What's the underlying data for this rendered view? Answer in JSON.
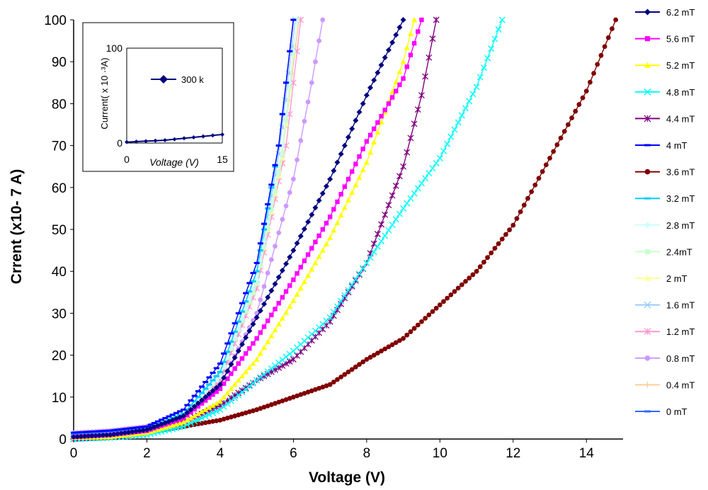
{
  "chart_data": {
    "type": "line",
    "title": "",
    "xlabel": "Voltage (V)",
    "ylabel": "Crrent (x10- 7 A)",
    "xlim": [
      0,
      15
    ],
    "ylim": [
      0,
      100
    ],
    "xticks": [
      "0",
      "2",
      "4",
      "6",
      "8",
      "10",
      "12",
      "14"
    ],
    "yticks": [
      "0",
      "10",
      "20",
      "30",
      "40",
      "50",
      "60",
      "70",
      "80",
      "90",
      "100"
    ],
    "grid": false,
    "legend_position": "right",
    "series": [
      {
        "name": "6.2 mT",
        "color": "#000080",
        "marker": "diamond",
        "points": [
          [
            0,
            0.5
          ],
          [
            1,
            1
          ],
          [
            2,
            2.2
          ],
          [
            3,
            5.5
          ],
          [
            4,
            13
          ],
          [
            5,
            29
          ],
          [
            6,
            45
          ],
          [
            7,
            62
          ],
          [
            8,
            82
          ],
          [
            9,
            100
          ]
        ]
      },
      {
        "name": "5.6  mT",
        "color": "#FF00FF",
        "marker": "square",
        "points": [
          [
            0,
            0.5
          ],
          [
            1,
            1
          ],
          [
            2,
            2
          ],
          [
            3,
            5
          ],
          [
            4,
            12
          ],
          [
            5,
            24
          ],
          [
            6,
            38
          ],
          [
            7,
            53
          ],
          [
            8,
            71
          ],
          [
            9,
            86
          ],
          [
            9.5,
            100
          ]
        ]
      },
      {
        "name": "5.2 mT",
        "color": "#FFFF00",
        "marker": "triangle",
        "points": [
          [
            0,
            0.3
          ],
          [
            1,
            0.5
          ],
          [
            2,
            1.5
          ],
          [
            3,
            4
          ],
          [
            4,
            9
          ],
          [
            5,
            19
          ],
          [
            6,
            33
          ],
          [
            7,
            48
          ],
          [
            8,
            66
          ],
          [
            9,
            90
          ],
          [
            9.3,
            100
          ]
        ]
      },
      {
        "name": "4.8 mT",
        "color": "#00FFFF",
        "marker": "x",
        "points": [
          [
            0,
            0
          ],
          [
            1,
            0.3
          ],
          [
            2,
            1
          ],
          [
            3,
            3
          ],
          [
            4,
            7
          ],
          [
            5,
            14
          ],
          [
            6,
            21
          ],
          [
            7,
            29
          ],
          [
            8,
            42
          ],
          [
            9,
            55
          ],
          [
            10,
            67
          ],
          [
            11,
            84
          ],
          [
            11.7,
            100
          ]
        ]
      },
      {
        "name": "4.4 mT",
        "color": "#800080",
        "marker": "asterisk",
        "points": [
          [
            0,
            0
          ],
          [
            1,
            0.5
          ],
          [
            2,
            1.5
          ],
          [
            3,
            4
          ],
          [
            4,
            8
          ],
          [
            5,
            14
          ],
          [
            6,
            19
          ],
          [
            7,
            28
          ],
          [
            8,
            42
          ],
          [
            9,
            65
          ],
          [
            9.5,
            82
          ],
          [
            9.9,
            100
          ]
        ]
      },
      {
        "name": "4 mT",
        "color": "#0000FF",
        "marker": "dash",
        "points": [
          [
            0,
            1.5
          ],
          [
            1,
            2
          ],
          [
            2,
            3
          ],
          [
            3,
            7
          ],
          [
            4,
            18
          ],
          [
            5,
            42
          ],
          [
            5.6,
            70
          ],
          [
            6,
            100
          ]
        ]
      },
      {
        "name": "3.6 mT",
        "color": "#800000",
        "marker": "circle",
        "points": [
          [
            0,
            0
          ],
          [
            1,
            0.5
          ],
          [
            2,
            1.5
          ],
          [
            3,
            3
          ],
          [
            4,
            4.5
          ],
          [
            5,
            7
          ],
          [
            6,
            10
          ],
          [
            7,
            13
          ],
          [
            8,
            19
          ],
          [
            9,
            24
          ],
          [
            10,
            32
          ],
          [
            11,
            40
          ],
          [
            12,
            51
          ],
          [
            13,
            67
          ],
          [
            14,
            83
          ],
          [
            14.8,
            100
          ]
        ]
      },
      {
        "name": "3.2 mT",
        "color": "#00CCFF",
        "marker": "dash",
        "points": [
          [
            0,
            1
          ],
          [
            1,
            1.5
          ],
          [
            2,
            2.5
          ],
          [
            3,
            6
          ],
          [
            4,
            16
          ],
          [
            5,
            40
          ],
          [
            5.6,
            70
          ],
          [
            6,
            100
          ]
        ]
      },
      {
        "name": "2.8 mT",
        "color": "#CCFFFF",
        "marker": "diamond",
        "points": [
          [
            0,
            1
          ],
          [
            1,
            1.5
          ],
          [
            2,
            2.5
          ],
          [
            3,
            6
          ],
          [
            4,
            15
          ],
          [
            5,
            38
          ],
          [
            5.7,
            70
          ],
          [
            6.1,
            100
          ]
        ]
      },
      {
        "name": "2.4mT",
        "color": "#CCFFCC",
        "marker": "square",
        "points": [
          [
            0,
            1
          ],
          [
            1,
            1.5
          ],
          [
            2,
            2.5
          ],
          [
            3,
            6
          ],
          [
            4,
            15
          ],
          [
            5,
            37
          ],
          [
            5.7,
            68
          ],
          [
            6.1,
            100
          ]
        ]
      },
      {
        "name": "2 mT",
        "color": "#FFFF99",
        "marker": "triangle",
        "points": [
          [
            0,
            1
          ],
          [
            1,
            1.5
          ],
          [
            2,
            2.5
          ],
          [
            3,
            6
          ],
          [
            4,
            15
          ],
          [
            5,
            37
          ],
          [
            5.7,
            67
          ],
          [
            6.1,
            100
          ]
        ]
      },
      {
        "name": "1.6 mT",
        "color": "#99CCFF",
        "marker": "x",
        "points": [
          [
            0,
            1
          ],
          [
            1,
            1.5
          ],
          [
            2,
            2.5
          ],
          [
            3,
            6
          ],
          [
            4,
            15
          ],
          [
            5,
            38
          ],
          [
            5.6,
            68
          ],
          [
            6.05,
            100
          ]
        ]
      },
      {
        "name": "1.2 mT",
        "color": "#FF99CC",
        "marker": "asterisk",
        "points": [
          [
            0,
            1
          ],
          [
            1,
            1.5
          ],
          [
            2,
            2.5
          ],
          [
            3,
            6
          ],
          [
            4,
            14
          ],
          [
            5,
            36
          ],
          [
            5.8,
            70
          ],
          [
            6.2,
            100
          ]
        ]
      },
      {
        "name": "0.8  mT",
        "color": "#CC99FF",
        "marker": "circle",
        "points": [
          [
            0,
            1.5
          ],
          [
            1,
            2
          ],
          [
            2,
            3
          ],
          [
            3,
            6
          ],
          [
            4,
            13
          ],
          [
            5,
            30
          ],
          [
            6,
            62
          ],
          [
            6.5,
            85
          ],
          [
            6.8,
            100
          ]
        ]
      },
      {
        "name": "0.4 mT",
        "color": "#FFCC99",
        "marker": "plus",
        "points": [
          [
            0,
            1
          ],
          [
            1,
            1.5
          ],
          [
            2,
            2.5
          ],
          [
            3,
            6
          ],
          [
            4,
            15
          ],
          [
            5,
            37
          ],
          [
            5.7,
            68
          ],
          [
            6.15,
            100
          ]
        ]
      },
      {
        "name": "0 mT",
        "color": "#3366FF",
        "marker": "dash",
        "points": [
          [
            0,
            1
          ],
          [
            1,
            1.5
          ],
          [
            2,
            2.5
          ],
          [
            3,
            6
          ],
          [
            4,
            16
          ],
          [
            5,
            40
          ],
          [
            5.6,
            70
          ],
          [
            6,
            100
          ]
        ]
      }
    ],
    "inset": {
      "ylabel": "Current( x 10 ·³A)",
      "xlabel": "Voltage (V)",
      "xlim": [
        0,
        15
      ],
      "ylim": [
        0,
        100
      ],
      "xticks": [
        "0",
        "15"
      ],
      "yticks": [
        "0",
        "100"
      ],
      "series": [
        {
          "name": "300 k",
          "color": "#000080",
          "marker": "diamond",
          "points": [
            [
              0,
              1
            ],
            [
              1.5,
              1.5
            ],
            [
              3,
              2
            ],
            [
              4.5,
              2.5
            ],
            [
              6,
              3
            ],
            [
              7.5,
              4
            ],
            [
              9,
              5
            ],
            [
              10.5,
              6
            ],
            [
              12,
              7
            ],
            [
              13.5,
              8
            ],
            [
              15,
              9
            ]
          ]
        }
      ]
    }
  }
}
